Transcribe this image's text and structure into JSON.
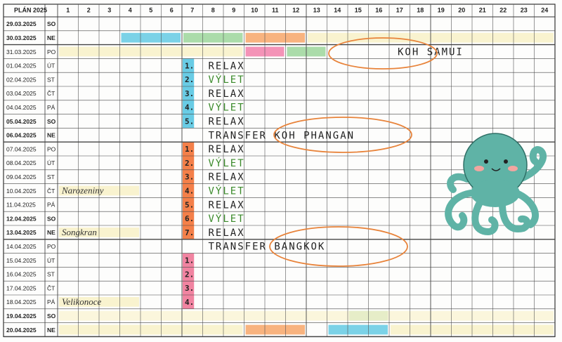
{
  "header": {
    "title": "PLÁN 2025",
    "hours": [
      1,
      2,
      3,
      4,
      5,
      6,
      7,
      8,
      9,
      10,
      11,
      12,
      13,
      14,
      15,
      16,
      17,
      18,
      19,
      20,
      21,
      22,
      23,
      24
    ]
  },
  "rows": [
    {
      "date": "29.03.2025",
      "day": "SO"
    },
    {
      "date": "30.03.2025",
      "day": "NE"
    },
    {
      "date": "31.03.2025",
      "day": "PO",
      "activity": "KOH SAMUI"
    },
    {
      "date": "01.04.2025",
      "day": "ÚT",
      "number": "1.",
      "activity": "RELAX"
    },
    {
      "date": "02.04.2025",
      "day": "ST",
      "number": "2.",
      "activity": "VÝLET"
    },
    {
      "date": "03.04.2025",
      "day": "ČT",
      "number": "3.",
      "activity": "RELAX"
    },
    {
      "date": "04.04.2025",
      "day": "PÁ",
      "number": "4.",
      "activity": "VÝLET"
    },
    {
      "date": "05.04.2025",
      "day": "SO",
      "number": "5.",
      "activity": "RELAX"
    },
    {
      "date": "06.04.2025",
      "day": "NE",
      "activity": "TRANSFER KOH PHANGAN"
    },
    {
      "date": "07.04.2025",
      "day": "PO",
      "number": "1.",
      "activity": "RELAX"
    },
    {
      "date": "08.04.2025",
      "day": "ÚT",
      "number": "2.",
      "activity": "VÝLET"
    },
    {
      "date": "09.04.2025",
      "day": "ST",
      "number": "3.",
      "activity": "RELAX"
    },
    {
      "date": "10.04.2025",
      "day": "ČT",
      "note": "Narozeniny",
      "number": "4.",
      "activity": "VÝLET"
    },
    {
      "date": "11.04.2025",
      "day": "PÁ",
      "number": "5.",
      "activity": "RELAX"
    },
    {
      "date": "12.04.2025",
      "day": "SO",
      "number": "6.",
      "activity": "VÝLET"
    },
    {
      "date": "13.04.2025",
      "day": "NE",
      "note": "Songkran",
      "number": "7.",
      "activity": "RELAX"
    },
    {
      "date": "14.04.2025",
      "day": "PO",
      "activity": "TRANSFER BANGKOK"
    },
    {
      "date": "15.04.2025",
      "day": "ÚT",
      "number": "1."
    },
    {
      "date": "16.04.2025",
      "day": "ST",
      "number": "2."
    },
    {
      "date": "17.04.2025",
      "day": "ČT",
      "number": "3."
    },
    {
      "date": "18.04.2025",
      "day": "PÁ",
      "note": "Velikonoce",
      "number": "4."
    },
    {
      "date": "19.04.2025",
      "day": "SO"
    },
    {
      "date": "20.04.2025",
      "day": "NE"
    }
  ]
}
